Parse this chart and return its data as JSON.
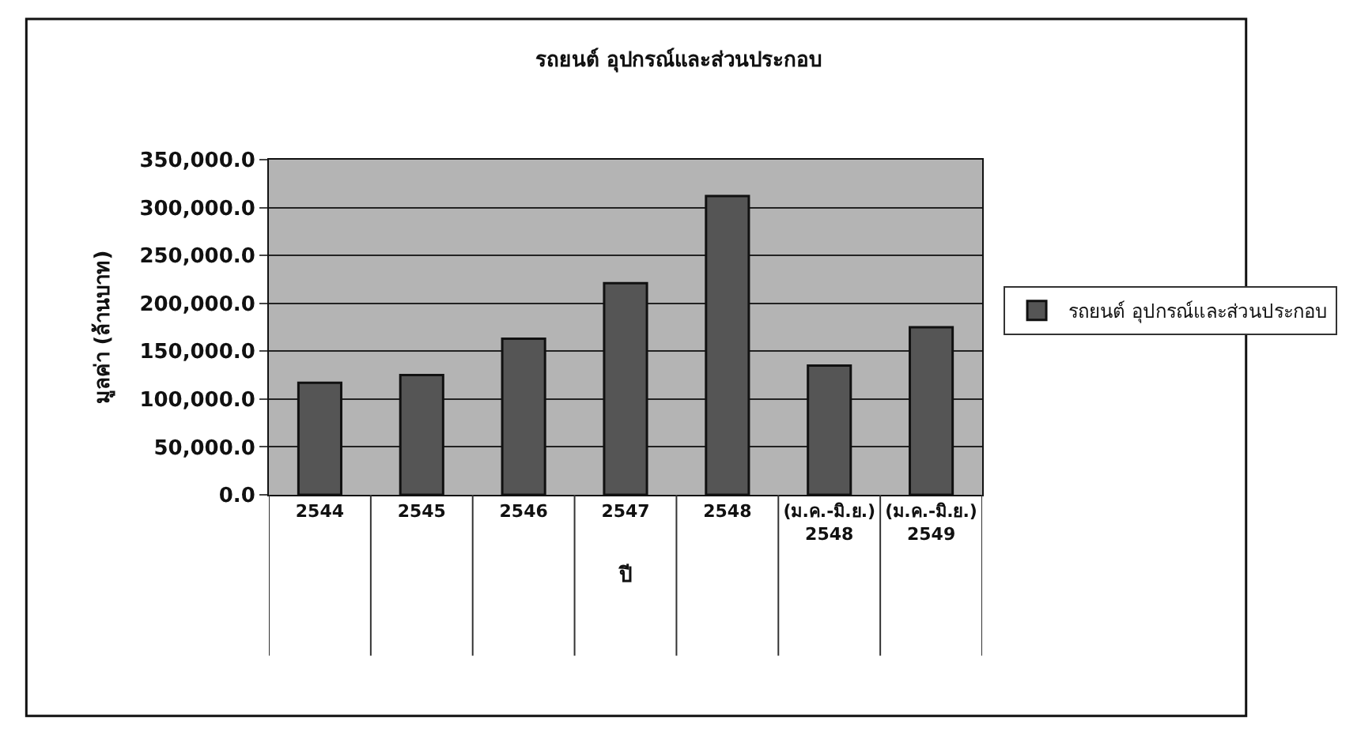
{
  "chart_data": {
    "type": "bar",
    "title": "รถยนต์ อุปกรณ์และส่วนประกอบ",
    "xlabel": "ปี",
    "ylabel": "มูลค่า (ล้านบาท)",
    "categories": [
      "2544",
      "2545",
      "2546",
      "2547",
      "2548",
      "(ม.ค.-มิ.ย.) 2548",
      "(ม.ค.-มิ.ย.) 2549"
    ],
    "series": [
      {
        "name": "รถยนต์ อุปกรณ์และส่วนประกอบ",
        "color": "#555555",
        "values": [
          117000,
          125000,
          163000,
          221000,
          312000,
          135000,
          175000
        ]
      }
    ],
    "ylim": [
      0,
      350000
    ],
    "yticks": [
      {
        "value": 0,
        "label": "0.0"
      },
      {
        "value": 50000,
        "label": "50,000.0"
      },
      {
        "value": 100000,
        "label": "100,000.0"
      },
      {
        "value": 150000,
        "label": "150,000.0"
      },
      {
        "value": 200000,
        "label": "200,000.0"
      },
      {
        "value": 250000,
        "label": "250,000.0"
      },
      {
        "value": 300000,
        "label": "300,000.0"
      },
      {
        "value": 350000,
        "label": "350,000.0"
      }
    ],
    "grid": "y",
    "legend": "right"
  }
}
